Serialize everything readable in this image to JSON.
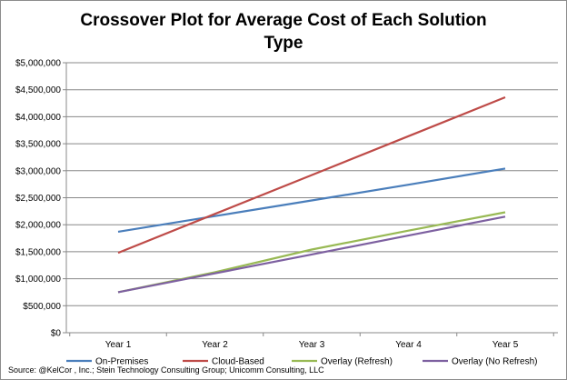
{
  "chart_data": {
    "type": "line",
    "title_lines": [
      "Crossover Plot for Average Cost of Each Solution",
      "Type"
    ],
    "categories": [
      "Year 1",
      "Year 2",
      "Year 3",
      "Year 4",
      "Year 5"
    ],
    "y_ticks": [
      "$0",
      "$500,000",
      "$1,000,000",
      "$1,500,000",
      "$2,000,000",
      "$2,500,000",
      "$3,000,000",
      "$3,500,000",
      "$4,000,000",
      "$4,500,000",
      "$5,000,000"
    ],
    "ylim": [
      0,
      5000000
    ],
    "grid": true,
    "legend_position": "bottom",
    "series": [
      {
        "name": "On-Premises",
        "color": "#4a7ebb",
        "values": [
          1870000,
          2160000,
          2450000,
          2740000,
          3040000
        ]
      },
      {
        "name": "Cloud-Based",
        "color": "#be4b48",
        "values": [
          1480000,
          2200000,
          2920000,
          3640000,
          4360000
        ]
      },
      {
        "name": "Overlay (Refresh)",
        "color": "#98b954",
        "values": [
          750000,
          1120000,
          1540000,
          1890000,
          2230000
        ]
      },
      {
        "name": "Overlay (No Refresh)",
        "color": "#7d60a0",
        "values": [
          750000,
          1100000,
          1450000,
          1800000,
          2150000
        ]
      }
    ],
    "source": "Source: @KelCor , Inc.; Stein Technology Consulting Group; Unicomm Consulting, LLC"
  }
}
